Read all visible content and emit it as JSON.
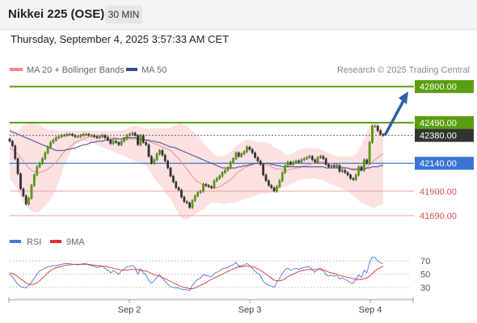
{
  "header": {
    "title": "Nikkei 225 (OSE)",
    "timeframe": "30 MIN"
  },
  "datetime": "Thursday, September 4, 2025 3:57:33 AM CET",
  "legend": {
    "ma20": "MA 20 + Bollinger Bands",
    "ma50": "MA 50"
  },
  "credit": "Research © 2025 Trading Central",
  "rsi_legend": {
    "rsi": "RSI",
    "ma": "9MA"
  },
  "colors": {
    "green": "#5a9e0f",
    "blue": "#3a74d6",
    "red_level": "#d9534f",
    "dark": "#333333",
    "arrow": "#2f5fa0",
    "band": "#fbd7d7"
  },
  "chart_data": [
    {
      "type": "candlestick",
      "title": "Nikkei 225 (OSE) — 30 MIN",
      "x_labels": [
        "Sep 2",
        "Sep 3",
        "Sep 4"
      ],
      "ylim": [
        41600,
        42850
      ],
      "levels": [
        {
          "value": 42800,
          "label": "42800.00",
          "kind": "resistance",
          "style": "green"
        },
        {
          "value": 42490,
          "label": "42490.00",
          "kind": "resistance",
          "style": "green"
        },
        {
          "value": 42380,
          "label": "42380.00",
          "kind": "last",
          "style": "dark"
        },
        {
          "value": 42140,
          "label": "42140.00",
          "kind": "pivot",
          "style": "blue"
        },
        {
          "value": 41900,
          "label": "41900.00",
          "kind": "support",
          "style": "red"
        },
        {
          "value": 41690,
          "label": "41690.00",
          "kind": "support",
          "style": "red"
        }
      ],
      "close": [
        42330,
        42290,
        42180,
        42050,
        41920,
        41860,
        41790,
        41840,
        41950,
        42040,
        42110,
        42140,
        42180,
        42230,
        42280,
        42320,
        42340,
        42360,
        42370,
        42380,
        42380,
        42390,
        42390,
        42380,
        42370,
        42370,
        42380,
        42390,
        42390,
        42380,
        42380,
        42370,
        42360,
        42370,
        42380,
        42360,
        42340,
        42310,
        42330,
        42320,
        42300,
        42330,
        42350,
        42380,
        42390,
        42400,
        42380,
        42300,
        42380,
        42320,
        42300,
        42200,
        42140,
        42170,
        42220,
        42250,
        42210,
        42160,
        42100,
        42030,
        41980,
        41930,
        41910,
        41850,
        41810,
        41800,
        41760,
        41820,
        41860,
        41890,
        41900,
        41960,
        41950,
        41940,
        41930,
        41990,
        42010,
        42030,
        42060,
        42080,
        42100,
        42150,
        42180,
        42230,
        42200,
        42220,
        42240,
        42280,
        42260,
        42230,
        42190,
        42160,
        42130,
        42040,
        41990,
        41950,
        41930,
        41900,
        41940,
        41990,
        42060,
        42120,
        42150,
        42130,
        42150,
        42160,
        42150,
        42170,
        42180,
        42190,
        42200,
        42170,
        42150,
        42190,
        42200,
        42180,
        42130,
        42110,
        42120,
        42110,
        42120,
        42070,
        42080,
        42060,
        42040,
        42010,
        42000,
        42040,
        42110,
        42080,
        42170,
        42140,
        42320,
        42460,
        42460,
        42420,
        42390,
        42380
      ],
      "ma20": [
        42270,
        42260,
        42240,
        42220,
        42190,
        42160,
        42130,
        42100,
        42080,
        42070,
        42060,
        42060,
        42070,
        42080,
        42090,
        42110,
        42130,
        42150,
        42180,
        42210,
        42240,
        42260,
        42280,
        42300,
        42320,
        42330,
        42340,
        42350,
        42360,
        42370,
        42370,
        42370,
        42370,
        42370,
        42370,
        42370,
        42370,
        42360,
        42360,
        42360,
        42350,
        42350,
        42350,
        42350,
        42350,
        42350,
        42350,
        42350,
        42350,
        42340,
        42340,
        42330,
        42320,
        42310,
        42300,
        42290,
        42280,
        42270,
        42260,
        42250,
        42230,
        42200,
        42180,
        42150,
        42120,
        42090,
        42060,
        42030,
        42000,
        41980,
        41970,
        41950,
        41940,
        41940,
        41930,
        41930,
        41930,
        41940,
        41950,
        41970,
        41980,
        42000,
        42020,
        42050,
        42070,
        42080,
        42100,
        42110,
        42120,
        42130,
        42140,
        42140,
        42140,
        42130,
        42130,
        42120,
        42110,
        42100,
        42090,
        42090,
        42090,
        42080,
        42080,
        42090,
        42090,
        42100,
        42100,
        42110,
        42120,
        42120,
        42130,
        42140,
        42140,
        42150,
        42150,
        42150,
        42150,
        42140,
        42140,
        42130,
        42130,
        42120,
        42110,
        42100,
        42100,
        42090,
        42080,
        42080,
        42080,
        42080,
        42090,
        42100,
        42130,
        42150,
        42170,
        42190,
        42210,
        42220
      ],
      "bb_upper": [
        42450,
        42430,
        42410,
        42420,
        42440,
        42460,
        42470,
        42490,
        42500,
        42500,
        42490,
        42470,
        42450,
        42440,
        42430,
        42430,
        42430,
        42420,
        42420,
        42420,
        42420,
        42420,
        42420,
        42420,
        42420,
        42420,
        42420,
        42420,
        42420,
        42420,
        42420,
        42420,
        42420,
        42420,
        42420,
        42420,
        42420,
        42420,
        42420,
        42420,
        42420,
        42420,
        42430,
        42440,
        42450,
        42460,
        42460,
        42460,
        42450,
        42440,
        42440,
        42440,
        42440,
        42440,
        42440,
        42440,
        42440,
        42440,
        42440,
        42450,
        42460,
        42470,
        42480,
        42480,
        42470,
        42460,
        42440,
        42420,
        42400,
        42380,
        42350,
        42320,
        42290,
        42260,
        42240,
        42220,
        42200,
        42200,
        42200,
        42210,
        42220,
        42240,
        42260,
        42290,
        42310,
        42320,
        42340,
        42340,
        42340,
        42340,
        42330,
        42320,
        42320,
        42320,
        42320,
        42310,
        42300,
        42280,
        42270,
        42260,
        42240,
        42220,
        42210,
        42220,
        42230,
        42240,
        42250,
        42260,
        42270,
        42270,
        42270,
        42270,
        42270,
        42270,
        42260,
        42250,
        42240,
        42230,
        42220,
        42210,
        42200,
        42200,
        42200,
        42200,
        42200,
        42200,
        42200,
        42220,
        42260,
        42300,
        42350,
        42400,
        42460,
        42490,
        42500,
        42480,
        42460,
        42440
      ],
      "bb_lower": [
        42000,
        41980,
        41950,
        41900,
        41850,
        41800,
        41770,
        41750,
        41730,
        41720,
        41720,
        41730,
        41750,
        41770,
        41800,
        41830,
        41870,
        41920,
        41980,
        42050,
        42120,
        42170,
        42220,
        42270,
        42300,
        42320,
        42330,
        42330,
        42330,
        42320,
        42320,
        42310,
        42300,
        42290,
        42280,
        42270,
        42260,
        42250,
        42240,
        42230,
        42220,
        42210,
        42200,
        42190,
        42180,
        42170,
        42160,
        42150,
        42140,
        42130,
        42120,
        42090,
        42050,
        42010,
        41980,
        41950,
        41920,
        41890,
        41860,
        41830,
        41790,
        41740,
        41700,
        41670,
        41660,
        41660,
        41670,
        41690,
        41700,
        41720,
        41730,
        41740,
        41760,
        41780,
        41800,
        41800,
        41800,
        41800,
        41790,
        41790,
        41800,
        41800,
        41800,
        41800,
        41810,
        41820,
        41830,
        41840,
        41840,
        41850,
        41860,
        41870,
        41880,
        41880,
        41880,
        41880,
        41890,
        41900,
        41910,
        41920,
        41930,
        41940,
        41950,
        41960,
        41970,
        41980,
        41990,
        42000,
        42000,
        42010,
        42010,
        42010,
        42010,
        42000,
        42000,
        41990,
        41980,
        41970,
        41960,
        41950,
        41940,
        41930,
        41920,
        41910,
        41900,
        41880,
        41860,
        41840,
        41820,
        41800,
        41790,
        41780,
        41770,
        41760,
        41760,
        41770,
        41780,
        41790
      ],
      "ma50": [
        42420,
        42410,
        42400,
        42390,
        42380,
        42370,
        42360,
        42350,
        42340,
        42330,
        42320,
        42310,
        42300,
        42290,
        42280,
        42270,
        42260,
        42250,
        42250,
        42250,
        42250,
        42260,
        42260,
        42270,
        42270,
        42280,
        42290,
        42300,
        42300,
        42310,
        42320,
        42320,
        42330,
        42330,
        42330,
        42340,
        42340,
        42340,
        42350,
        42350,
        42350,
        42350,
        42360,
        42360,
        42360,
        42360,
        42360,
        42350,
        42350,
        42350,
        42340,
        42340,
        42330,
        42330,
        42320,
        42320,
        42310,
        42300,
        42290,
        42280,
        42280,
        42270,
        42260,
        42250,
        42240,
        42230,
        42220,
        42210,
        42200,
        42190,
        42180,
        42170,
        42160,
        42150,
        42140,
        42130,
        42120,
        42110,
        42100,
        42100,
        42100,
        42100,
        42100,
        42100,
        42110,
        42110,
        42120,
        42120,
        42130,
        42130,
        42140,
        42140,
        42140,
        42140,
        42140,
        42140,
        42130,
        42130,
        42120,
        42120,
        42110,
        42110,
        42110,
        42110,
        42110,
        42110,
        42110,
        42110,
        42110,
        42110,
        42110,
        42110,
        42110,
        42110,
        42110,
        42110,
        42100,
        42100,
        42100,
        42100,
        42100,
        42100,
        42100,
        42100,
        42100,
        42090,
        42090,
        42090,
        42090,
        42090,
        42090,
        42100,
        42100,
        42110,
        42110,
        42110,
        42120,
        42120
      ]
    },
    {
      "type": "line",
      "title": "RSI",
      "ylim": [
        20,
        80
      ],
      "y_ticks": [
        70,
        50,
        30
      ],
      "series": [
        {
          "name": "RSI",
          "color": "#4a78d8",
          "values": [
            50,
            46,
            40,
            35,
            31,
            30,
            29,
            33,
            38,
            44,
            50,
            55,
            57,
            59,
            61,
            62,
            63,
            63,
            64,
            65,
            66,
            66,
            66,
            65,
            65,
            64,
            65,
            66,
            66,
            64,
            63,
            62,
            60,
            61,
            62,
            59,
            56,
            52,
            55,
            53,
            50,
            55,
            58,
            61,
            62,
            63,
            60,
            50,
            58,
            52,
            49,
            40,
            36,
            40,
            45,
            49,
            44,
            39,
            35,
            31,
            30,
            29,
            29,
            27,
            27,
            26,
            25,
            33,
            38,
            42,
            44,
            49,
            48,
            47,
            46,
            51,
            53,
            55,
            58,
            59,
            60,
            63,
            64,
            68,
            62,
            63,
            64,
            66,
            63,
            59,
            54,
            51,
            48,
            39,
            36,
            33,
            32,
            30,
            38,
            44,
            51,
            57,
            59,
            56,
            58,
            59,
            57,
            59,
            60,
            61,
            61,
            56,
            53,
            58,
            59,
            56,
            49,
            47,
            48,
            47,
            48,
            43,
            44,
            42,
            40,
            37,
            36,
            42,
            49,
            45,
            56,
            52,
            68,
            76,
            75,
            70,
            67,
            66
          ]
        },
        {
          "name": "9MA",
          "color": "#e03030",
          "values": [
            52,
            51,
            49,
            46,
            43,
            40,
            37,
            35,
            34,
            35,
            37,
            40,
            44,
            48,
            52,
            55,
            58,
            60,
            61,
            62,
            63,
            64,
            64,
            65,
            65,
            65,
            65,
            65,
            65,
            65,
            64,
            64,
            63,
            63,
            62,
            62,
            61,
            60,
            59,
            58,
            57,
            56,
            56,
            56,
            57,
            57,
            57,
            57,
            56,
            55,
            55,
            53,
            51,
            49,
            48,
            47,
            45,
            43,
            41,
            39,
            37,
            35,
            33,
            31,
            30,
            29,
            28,
            28,
            29,
            31,
            33,
            35,
            37,
            40,
            42,
            44,
            46,
            48,
            50,
            52,
            54,
            56,
            58,
            60,
            61,
            61,
            62,
            62,
            62,
            61,
            60,
            58,
            56,
            53,
            50,
            47,
            44,
            41,
            40,
            40,
            41,
            43,
            46,
            48,
            50,
            52,
            54,
            55,
            56,
            57,
            57,
            57,
            57,
            57,
            57,
            56,
            55,
            53,
            52,
            51,
            50,
            48,
            47,
            46,
            45,
            44,
            43,
            42,
            42,
            42,
            43,
            44,
            47,
            51,
            55,
            58,
            60,
            62
          ]
        }
      ]
    }
  ]
}
